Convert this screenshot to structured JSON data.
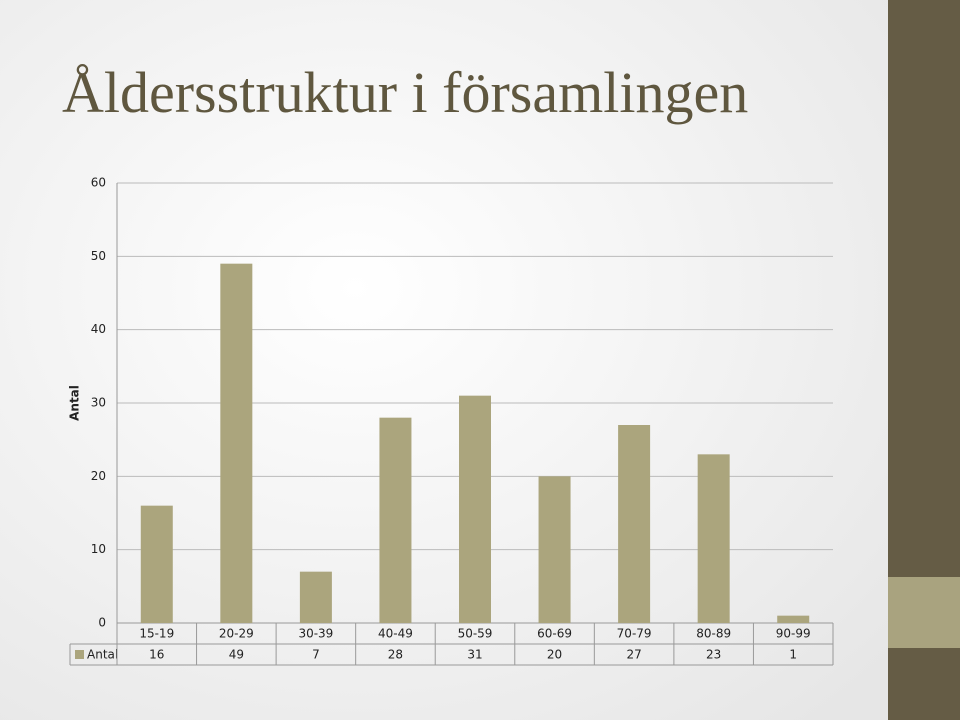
{
  "chart_data": {
    "type": "bar",
    "title": "Åldersstruktur i församlingen",
    "y_label": "Antal",
    "categories": [
      "15-19",
      "20-29",
      "30-39",
      "40-49",
      "50-59",
      "60-69",
      "70-79",
      "80-89",
      "90-99"
    ],
    "series": [
      {
        "name": "Antal",
        "color": "#aba57d",
        "values": [
          16,
          49,
          7,
          28,
          31,
          20,
          27,
          23,
          1
        ]
      }
    ],
    "ylim": [
      0,
      60
    ],
    "yticks": [
      0,
      10,
      20,
      30,
      40,
      50,
      60
    ],
    "grid": true
  }
}
